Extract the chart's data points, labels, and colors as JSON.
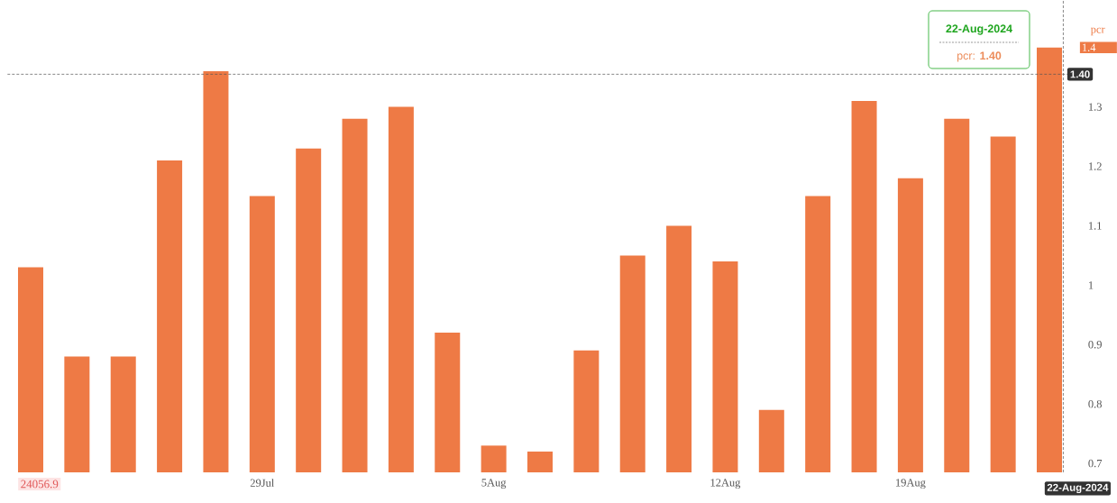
{
  "chart_data": {
    "type": "bar",
    "categories": [
      null,
      null,
      null,
      null,
      null,
      "29Jul",
      null,
      null,
      null,
      null,
      "5Aug",
      null,
      null,
      null,
      null,
      "12Aug",
      null,
      null,
      null,
      "19Aug",
      null,
      null,
      null
    ],
    "series": [
      {
        "name": "pcr",
        "color": "#ee7a45",
        "values": [
          1.03,
          0.88,
          0.88,
          1.21,
          1.36,
          1.15,
          1.23,
          1.28,
          1.3,
          0.92,
          0.73,
          0.72,
          0.89,
          1.05,
          1.1,
          1.04,
          0.79,
          1.15,
          1.31,
          1.18,
          1.28,
          1.25,
          1.4
        ]
      }
    ],
    "ylim": [
      0.685,
      1.48
    ],
    "yticks": [
      0.7,
      0.8,
      0.9,
      1,
      1.1,
      1.2,
      1.3
    ],
    "legend": "top right",
    "ref_lines": [
      {
        "axis": "y",
        "value": 1.355,
        "color": "#555555",
        "line_style": "dashed"
      }
    ],
    "annotations": [
      "22-Aug-2024",
      "pcr: **1.40**",
      "1.4",
      "1.40",
      "22-Aug-2024",
      "24056.9"
    ]
  }
}
